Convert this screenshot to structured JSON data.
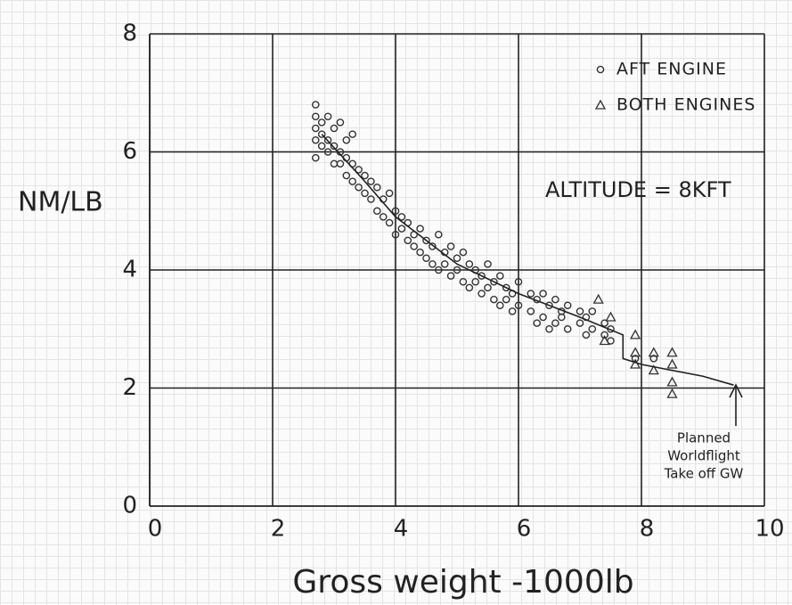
{
  "chart_data": {
    "type": "scatter",
    "x_label": "Gross weight -1000lb",
    "y_label": "NM/LB",
    "xlim": [
      0,
      10
    ],
    "xticks": [
      0,
      2,
      4,
      6,
      8,
      10
    ],
    "ylim": [
      0,
      8
    ],
    "yticks": [
      0,
      2,
      4,
      6,
      8
    ],
    "grid": true,
    "legend": "top-right",
    "series": [
      {
        "name": "AFT ENGINE",
        "marker": "circle",
        "color": "#333333",
        "x": [
          2.7,
          2.7,
          2.7,
          2.7,
          2.7,
          2.8,
          2.8,
          2.8,
          2.9,
          2.9,
          2.9,
          3.0,
          3.0,
          3.0,
          3.1,
          3.1,
          3.1,
          3.2,
          3.2,
          3.2,
          3.3,
          3.3,
          3.3,
          3.4,
          3.4,
          3.5,
          3.5,
          3.6,
          3.6,
          3.7,
          3.7,
          3.8,
          3.8,
          3.9,
          3.9,
          4.0,
          4.0,
          4.1,
          4.1,
          4.2,
          4.2,
          4.3,
          4.3,
          4.4,
          4.4,
          4.5,
          4.5,
          4.6,
          4.6,
          4.7,
          4.7,
          4.8,
          4.8,
          4.9,
          4.9,
          5.0,
          5.0,
          5.1,
          5.1,
          5.2,
          5.2,
          5.3,
          5.3,
          5.4,
          5.4,
          5.5,
          5.5,
          5.6,
          5.6,
          5.7,
          5.7,
          5.8,
          5.8,
          5.9,
          5.9,
          6.0,
          6.0,
          6.2,
          6.2,
          6.3,
          6.3,
          6.4,
          6.4,
          6.5,
          6.5,
          6.6,
          6.6,
          6.7,
          6.7,
          6.8,
          6.8,
          7.0,
          7.0,
          7.1,
          7.1,
          7.2,
          7.2,
          7.4,
          7.4,
          7.5,
          7.5,
          7.9,
          8.2
        ],
        "values": [
          6.8,
          6.6,
          6.4,
          6.2,
          5.9,
          6.5,
          6.3,
          6.1,
          6.6,
          6.2,
          6.0,
          6.4,
          6.1,
          5.8,
          6.5,
          6.0,
          5.8,
          6.2,
          5.9,
          5.6,
          6.3,
          5.8,
          5.5,
          5.7,
          5.4,
          5.6,
          5.3,
          5.5,
          5.2,
          5.4,
          5.0,
          5.2,
          4.9,
          5.3,
          4.8,
          5.0,
          4.6,
          4.9,
          4.7,
          4.8,
          4.5,
          4.6,
          4.4,
          4.7,
          4.3,
          4.5,
          4.2,
          4.4,
          4.1,
          4.6,
          4.0,
          4.3,
          4.1,
          4.4,
          3.9,
          4.2,
          4.0,
          4.3,
          3.8,
          4.1,
          3.7,
          4.0,
          3.8,
          3.9,
          3.6,
          4.1,
          3.7,
          3.8,
          3.5,
          3.9,
          3.4,
          3.7,
          3.5,
          3.6,
          3.3,
          3.8,
          3.4,
          3.6,
          3.3,
          3.5,
          3.1,
          3.6,
          3.2,
          3.4,
          3.0,
          3.5,
          3.1,
          3.3,
          3.2,
          3.4,
          3.0,
          3.3,
          3.1,
          3.2,
          2.9,
          3.3,
          3.0,
          3.1,
          2.9,
          3.0,
          2.8,
          2.5,
          2.5
        ]
      },
      {
        "name": "BOTH ENGINES",
        "marker": "triangle",
        "color": "#333333",
        "x": [
          7.3,
          7.5,
          7.4,
          7.9,
          7.9,
          7.9,
          8.2,
          8.2,
          8.5,
          8.5,
          8.5,
          8.5
        ],
        "values": [
          3.5,
          3.2,
          2.8,
          2.9,
          2.6,
          2.4,
          2.6,
          2.3,
          2.6,
          2.4,
          2.1,
          1.9
        ]
      }
    ],
    "fit": {
      "x": [
        2.8,
        3.5,
        4.0,
        5.0,
        6.0,
        7.0,
        7.7,
        7.7,
        8.0,
        9.0,
        9.5
      ],
      "values": [
        6.3,
        5.5,
        4.9,
        4.1,
        3.6,
        3.2,
        2.9,
        2.5,
        2.4,
        2.2,
        2.05
      ]
    },
    "annotations": [
      "ALTITUDE = 8KFT",
      "Planned",
      "Worldflight",
      "Take off GW"
    ]
  }
}
